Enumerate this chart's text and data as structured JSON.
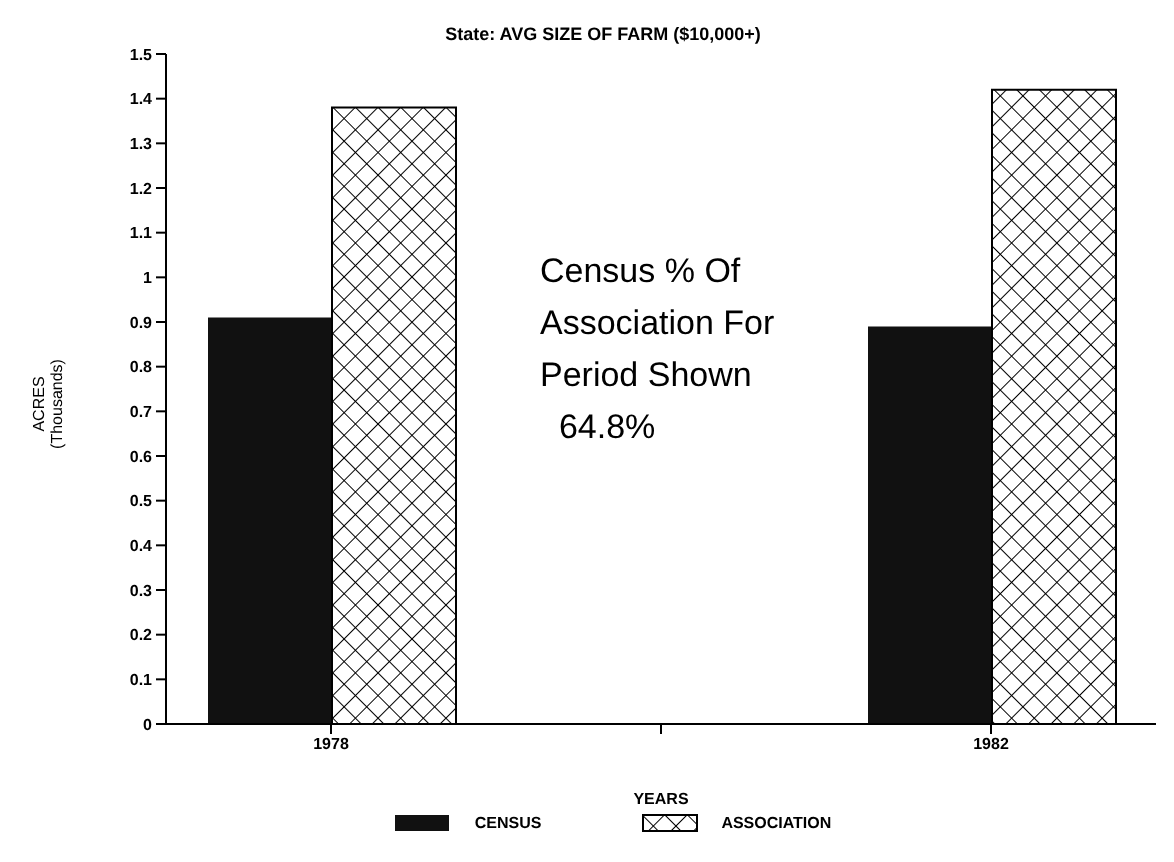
{
  "chart_data": {
    "type": "bar",
    "title": "State: AVG SIZE OF FARM ($10,000+)",
    "xlabel": "YEARS",
    "ylabel": "ACRES\n(Thousands)",
    "categories": [
      "1978",
      null,
      "1982"
    ],
    "series": [
      {
        "name": "CENSUS",
        "color": "#111111",
        "values": [
          0.91,
          null,
          0.89
        ]
      },
      {
        "name": "ASSOCIATION",
        "color": "#000000",
        "values": [
          1.38,
          null,
          1.42
        ]
      }
    ],
    "ylim": [
      0,
      1.5
    ],
    "yticks": [
      0,
      0.1,
      0.2,
      0.3,
      0.4,
      0.5,
      0.6,
      0.7,
      0.8,
      0.9,
      1,
      1.1,
      1.2,
      1.3,
      1.4,
      1.5
    ],
    "annotations": [
      "Census % Of\nAssociation For\nPeriod Shown\n  64.8%"
    ],
    "grid": false,
    "legend": "bottom"
  }
}
